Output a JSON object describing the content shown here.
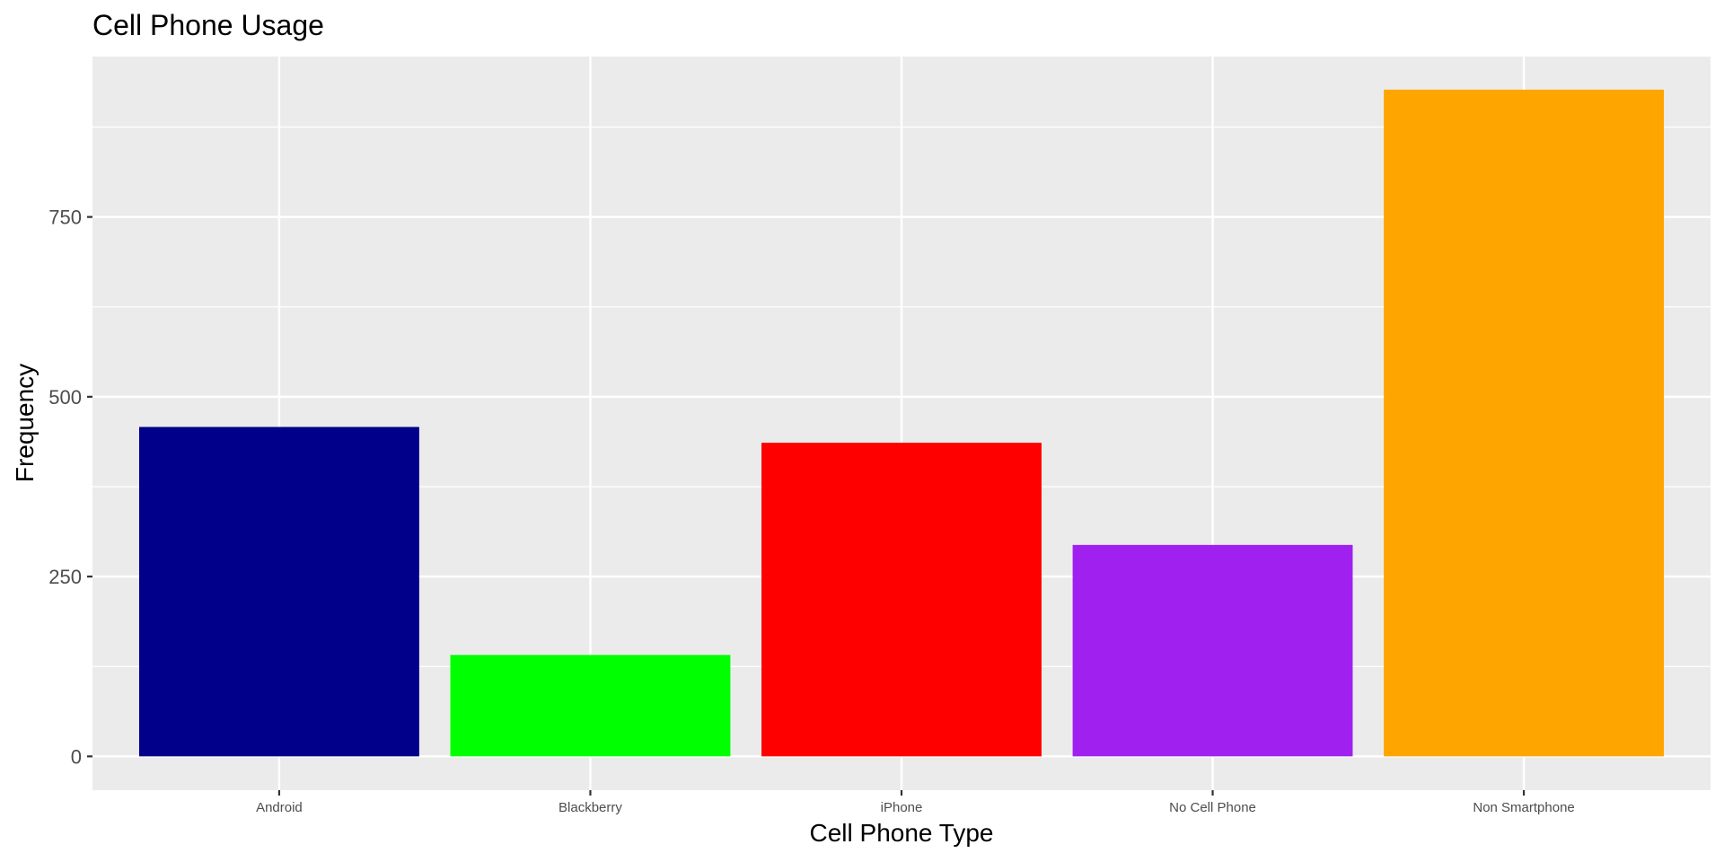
{
  "chart_data": {
    "type": "bar",
    "title": "Cell Phone Usage",
    "xlabel": "Cell Phone Type",
    "ylabel": "Frequency",
    "categories": [
      "Android",
      "Blackberry",
      "iPhone",
      "No Cell Phone",
      "Non Smartphone"
    ],
    "values": [
      458,
      141,
      436,
      294,
      927
    ],
    "bar_colors": [
      "#00008B",
      "#00FF00",
      "#FF0000",
      "#A020F0",
      "#FFA500"
    ],
    "ylim": [
      -47,
      973
    ],
    "yticks": [
      0,
      250,
      500,
      750
    ],
    "ytick_labels": [
      "0",
      "250",
      "500",
      "750"
    ],
    "grid": true,
    "legend": "none",
    "panel_background": "#EBEBEB",
    "gridline_color": "#FFFFFF"
  }
}
